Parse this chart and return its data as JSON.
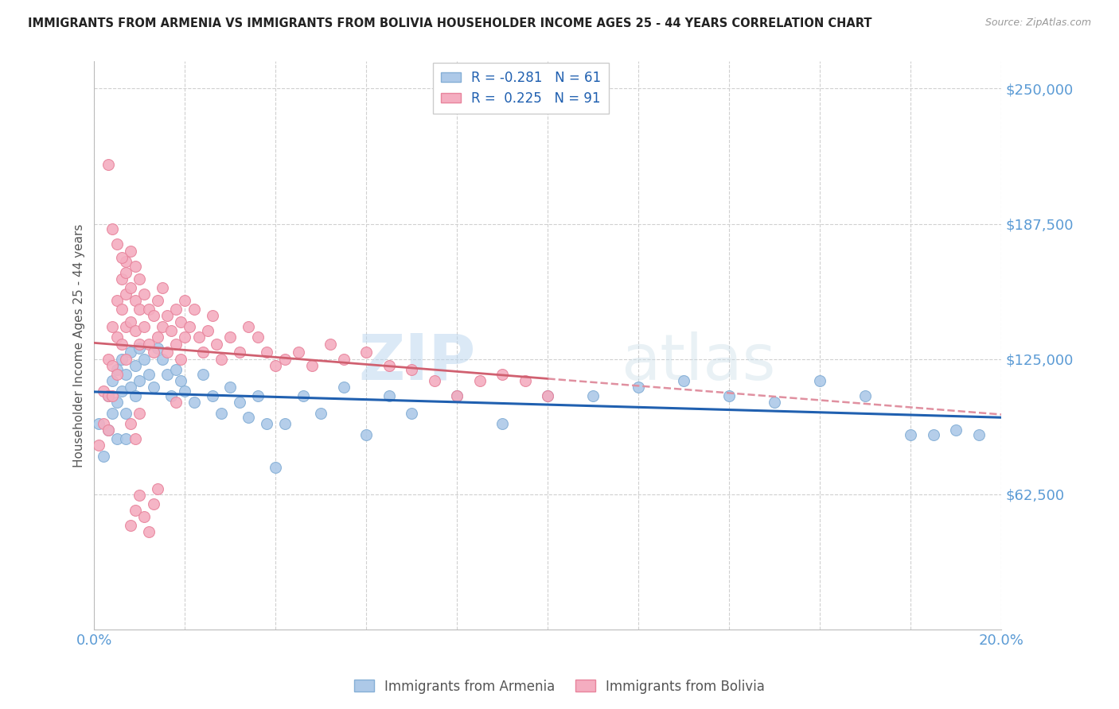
{
  "title": "IMMIGRANTS FROM ARMENIA VS IMMIGRANTS FROM BOLIVIA HOUSEHOLDER INCOME AGES 25 - 44 YEARS CORRELATION CHART",
  "source": "Source: ZipAtlas.com",
  "ylabel": "Householder Income Ages 25 - 44 years",
  "xlim": [
    0.0,
    0.2
  ],
  "ylim": [
    0,
    262500
  ],
  "yticks": [
    62500,
    125000,
    187500,
    250000
  ],
  "ytick_labels": [
    "$62,500",
    "$125,000",
    "$187,500",
    "$250,000"
  ],
  "xticks": [
    0.0,
    0.02,
    0.04,
    0.06,
    0.08,
    0.1,
    0.12,
    0.14,
    0.16,
    0.18,
    0.2
  ],
  "armenia_color": "#adc9e8",
  "bolivia_color": "#f4adc0",
  "armenia_edge": "#85afd6",
  "bolivia_edge": "#e8849c",
  "trendline_armenia_color": "#2060b0",
  "trendline_bolivia_solid_color": "#d06070",
  "trendline_bolivia_dash_color": "#e090a0",
  "armenia_R": -0.281,
  "armenia_N": 61,
  "bolivia_R": 0.225,
  "bolivia_N": 91,
  "watermark": "ZIPatlas",
  "background_color": "#ffffff",
  "grid_color": "#d0d0d0",
  "label_color": "#5b9bd5",
  "armenia_x": [
    0.001,
    0.002,
    0.003,
    0.003,
    0.004,
    0.004,
    0.005,
    0.005,
    0.005,
    0.006,
    0.006,
    0.007,
    0.007,
    0.007,
    0.008,
    0.008,
    0.009,
    0.009,
    0.01,
    0.01,
    0.011,
    0.012,
    0.013,
    0.014,
    0.015,
    0.016,
    0.017,
    0.018,
    0.019,
    0.02,
    0.022,
    0.024,
    0.026,
    0.028,
    0.03,
    0.032,
    0.034,
    0.036,
    0.038,
    0.04,
    0.042,
    0.046,
    0.05,
    0.055,
    0.06,
    0.065,
    0.07,
    0.08,
    0.09,
    0.1,
    0.11,
    0.12,
    0.13,
    0.14,
    0.15,
    0.16,
    0.17,
    0.18,
    0.185,
    0.19,
    0.195
  ],
  "armenia_y": [
    95000,
    80000,
    108000,
    92000,
    115000,
    100000,
    120000,
    105000,
    88000,
    125000,
    110000,
    118000,
    100000,
    88000,
    128000,
    112000,
    122000,
    108000,
    130000,
    115000,
    125000,
    118000,
    112000,
    130000,
    125000,
    118000,
    108000,
    120000,
    115000,
    110000,
    105000,
    118000,
    108000,
    100000,
    112000,
    105000,
    98000,
    108000,
    95000,
    75000,
    95000,
    108000,
    100000,
    112000,
    90000,
    108000,
    100000,
    108000,
    95000,
    108000,
    108000,
    112000,
    115000,
    108000,
    105000,
    115000,
    108000,
    90000,
    90000,
    92000,
    90000
  ],
  "bolivia_x": [
    0.001,
    0.002,
    0.002,
    0.003,
    0.003,
    0.003,
    0.004,
    0.004,
    0.004,
    0.005,
    0.005,
    0.005,
    0.006,
    0.006,
    0.006,
    0.007,
    0.007,
    0.007,
    0.007,
    0.008,
    0.008,
    0.008,
    0.009,
    0.009,
    0.009,
    0.01,
    0.01,
    0.01,
    0.011,
    0.011,
    0.012,
    0.012,
    0.013,
    0.013,
    0.014,
    0.014,
    0.015,
    0.015,
    0.016,
    0.016,
    0.017,
    0.018,
    0.018,
    0.019,
    0.019,
    0.02,
    0.02,
    0.021,
    0.022,
    0.023,
    0.024,
    0.025,
    0.026,
    0.027,
    0.028,
    0.03,
    0.032,
    0.034,
    0.036,
    0.038,
    0.04,
    0.042,
    0.045,
    0.048,
    0.052,
    0.055,
    0.06,
    0.065,
    0.07,
    0.075,
    0.08,
    0.085,
    0.09,
    0.095,
    0.1,
    0.003,
    0.004,
    0.005,
    0.006,
    0.007,
    0.008,
    0.009,
    0.01,
    0.011,
    0.012,
    0.013,
    0.014,
    0.018,
    0.008,
    0.009,
    0.01
  ],
  "bolivia_y": [
    85000,
    110000,
    95000,
    125000,
    108000,
    92000,
    140000,
    122000,
    108000,
    152000,
    135000,
    118000,
    162000,
    148000,
    132000,
    170000,
    155000,
    140000,
    125000,
    175000,
    158000,
    142000,
    168000,
    152000,
    138000,
    162000,
    148000,
    132000,
    155000,
    140000,
    148000,
    132000,
    145000,
    128000,
    152000,
    135000,
    158000,
    140000,
    145000,
    128000,
    138000,
    148000,
    132000,
    142000,
    125000,
    152000,
    135000,
    140000,
    148000,
    135000,
    128000,
    138000,
    145000,
    132000,
    125000,
    135000,
    128000,
    140000,
    135000,
    128000,
    122000,
    125000,
    128000,
    122000,
    132000,
    125000,
    128000,
    122000,
    120000,
    115000,
    108000,
    115000,
    118000,
    115000,
    108000,
    215000,
    185000,
    178000,
    172000,
    165000,
    48000,
    55000,
    62000,
    52000,
    45000,
    58000,
    65000,
    105000,
    95000,
    88000,
    100000
  ]
}
